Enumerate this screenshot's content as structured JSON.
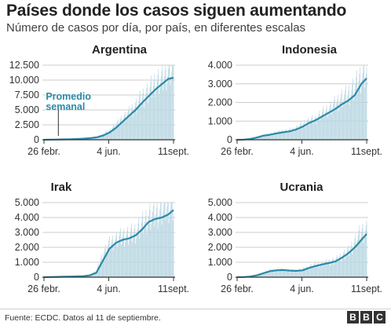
{
  "title": "Países donde los casos siguen aumentando",
  "subtitle": "Número de casos por día, por país, en diferentes escalas",
  "source": "Fuente: ECDC. Datos al 11 de septiembre.",
  "logo": [
    "B",
    "B",
    "C"
  ],
  "colors": {
    "bars": "#b9d7e2",
    "line": "#2b8aa6",
    "text": "#222222",
    "axis": "#333333",
    "grid": "#cccccc",
    "annotation": "#2b8aa6"
  },
  "chart_data": [
    {
      "type": "bar",
      "title": "Argentina",
      "x_ticks": [
        "26 febr.",
        "4 jun.",
        "11sept."
      ],
      "y_ticks": [
        "0",
        "2.500",
        "5.000",
        "7.500",
        "10.000",
        "12.500"
      ],
      "ylim": [
        0,
        12500
      ],
      "annotation": [
        "Promedio",
        "semanal"
      ],
      "series": [
        {
          "kind": "bars",
          "x": [
            0,
            10,
            20,
            30,
            40,
            50,
            60,
            70,
            80,
            90,
            100,
            110,
            120,
            130,
            140,
            150,
            160,
            170,
            180,
            190,
            198
          ],
          "values": [
            0,
            20,
            40,
            70,
            100,
            150,
            200,
            300,
            500,
            900,
            1500,
            2500,
            3500,
            4500,
            5500,
            7000,
            8000,
            9500,
            10000,
            11500,
            12000
          ]
        },
        {
          "kind": "line",
          "name": "Promedio semanal",
          "x": [
            0,
            10,
            20,
            30,
            40,
            50,
            60,
            70,
            80,
            90,
            100,
            110,
            120,
            130,
            140,
            150,
            160,
            170,
            180,
            190,
            198
          ],
          "values": [
            0,
            20,
            40,
            60,
            90,
            130,
            180,
            260,
            400,
            700,
            1200,
            2000,
            3000,
            4000,
            5000,
            6200,
            7300,
            8400,
            9300,
            10200,
            10400
          ]
        }
      ]
    },
    {
      "type": "bar",
      "title": "Indonesia",
      "x_ticks": [
        "26 febr.",
        "4 jun.",
        "11sept."
      ],
      "y_ticks": [
        "0",
        "1.000",
        "2.000",
        "3.000",
        "4.000"
      ],
      "ylim": [
        0,
        4000
      ],
      "series": [
        {
          "kind": "bars",
          "x": [
            0,
            10,
            20,
            30,
            40,
            50,
            60,
            70,
            80,
            90,
            100,
            110,
            120,
            130,
            140,
            150,
            160,
            170,
            180,
            190,
            198
          ],
          "values": [
            0,
            10,
            50,
            150,
            250,
            300,
            400,
            450,
            500,
            600,
            800,
            1000,
            1100,
            1400,
            1600,
            1900,
            2200,
            2400,
            2800,
            3400,
            3700
          ]
        },
        {
          "kind": "line",
          "name": "Promedio semanal",
          "x": [
            0,
            10,
            20,
            30,
            40,
            50,
            60,
            70,
            80,
            90,
            100,
            110,
            120,
            130,
            140,
            150,
            160,
            170,
            180,
            190,
            198
          ],
          "values": [
            0,
            10,
            40,
            120,
            220,
            270,
            340,
            400,
            450,
            550,
            700,
            900,
            1050,
            1250,
            1450,
            1650,
            1900,
            2100,
            2400,
            3000,
            3300
          ]
        }
      ]
    },
    {
      "type": "bar",
      "title": "Irak",
      "x_ticks": [
        "26 febr.",
        "4 jun.",
        "11sept."
      ],
      "y_ticks": [
        "0",
        "1.000",
        "2.000",
        "3.000",
        "4.000",
        "5.000"
      ],
      "ylim": [
        0,
        5000
      ],
      "series": [
        {
          "kind": "bars",
          "x": [
            0,
            10,
            20,
            30,
            40,
            50,
            60,
            70,
            80,
            90,
            100,
            110,
            120,
            130,
            140,
            150,
            160,
            170,
            180,
            190,
            198
          ],
          "values": [
            0,
            10,
            30,
            40,
            50,
            60,
            80,
            150,
            400,
            1500,
            2200,
            2500,
            2700,
            2800,
            3000,
            3500,
            4000,
            4200,
            4500,
            4800,
            4900
          ]
        },
        {
          "kind": "line",
          "name": "Promedio semanal",
          "x": [
            0,
            10,
            20,
            30,
            40,
            50,
            60,
            70,
            80,
            90,
            100,
            110,
            120,
            130,
            140,
            150,
            160,
            170,
            180,
            190,
            198
          ],
          "values": [
            0,
            10,
            20,
            30,
            40,
            50,
            70,
            120,
            300,
            1100,
            1900,
            2300,
            2500,
            2600,
            2800,
            3200,
            3700,
            3900,
            4000,
            4200,
            4500
          ]
        }
      ]
    },
    {
      "type": "bar",
      "title": "Ucrania",
      "x_ticks": [
        "26 febr.",
        "4 jun.",
        "11sept."
      ],
      "y_ticks": [
        "0",
        "1.000",
        "2.000",
        "3.000",
        "4.000",
        "5.000"
      ],
      "ylim": [
        0,
        5000
      ],
      "series": [
        {
          "kind": "bars",
          "x": [
            0,
            10,
            20,
            30,
            40,
            50,
            60,
            70,
            80,
            90,
            100,
            110,
            120,
            130,
            140,
            150,
            160,
            170,
            180,
            190,
            198
          ],
          "values": [
            0,
            10,
            50,
            150,
            300,
            450,
            500,
            500,
            450,
            450,
            500,
            700,
            800,
            900,
            1000,
            1100,
            1400,
            1700,
            2300,
            3000,
            3100
          ]
        },
        {
          "kind": "line",
          "name": "Promedio semanal",
          "x": [
            0,
            10,
            20,
            30,
            40,
            50,
            60,
            70,
            80,
            90,
            100,
            110,
            120,
            130,
            140,
            150,
            160,
            170,
            180,
            190,
            198
          ],
          "values": [
            0,
            10,
            40,
            120,
            260,
            400,
            460,
            480,
            440,
            420,
            460,
            620,
            750,
            850,
            950,
            1050,
            1300,
            1600,
            2000,
            2500,
            2900
          ]
        }
      ]
    }
  ]
}
